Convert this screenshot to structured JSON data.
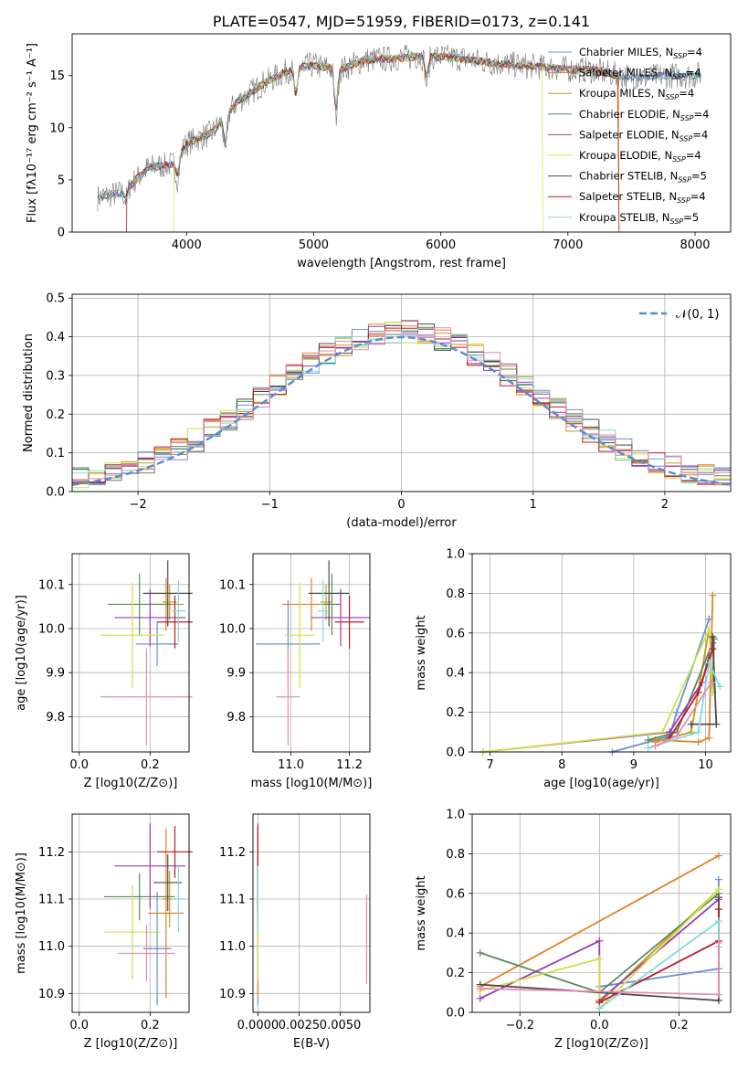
{
  "colors": [
    "#6b8fd6",
    "#e0822b",
    "#c89a1a",
    "#5a8a5a",
    "#9b3bb5",
    "#cfe04a",
    "#4a4a4a",
    "#b81c24",
    "#7fdada",
    "#e88ab0"
  ],
  "chart_data": [
    {
      "id": "spectrum",
      "type": "line",
      "title": "PLATE=0547, MJD=51959, FIBERID=0173, z=0.141",
      "xlabel": "wavelength [Angstrom, rest frame]",
      "ylabel": "Flux [fλ10⁻¹⁷ erg cm⁻² s⁻¹ A⁻¹]",
      "xlim": [
        3100,
        8280
      ],
      "ylim": [
        0,
        19
      ],
      "xticks": [
        4000,
        5000,
        6000,
        7000,
        8000
      ],
      "yticks": [
        0,
        5,
        10,
        15
      ],
      "legend": [
        "Chabrier MILES, N_SSP=4",
        "Salpeter MILES, N_SSP=4",
        "Kroupa MILES, N_SSP=4",
        "Chabrier ELODIE, N_SSP=4",
        "Salpeter ELODIE, N_SSP=4",
        "Kroupa ELODIE, N_SSP=4",
        "Chabrier STELIB, N_SSP=5",
        "Salpeter STELIB, N_SSP=4",
        "Kroupa STELIB, N_SSP=5"
      ],
      "legend_colors": [
        "#6b8fd6",
        "#e0822b",
        "#c89a1a",
        "#5a8a5a",
        "#9b3bb5",
        "#cfe04a",
        "#4a4a4a",
        "#b81c24",
        "#7fdada"
      ],
      "continuum": [
        [
          3300,
          3.3
        ],
        [
          3500,
          3.8
        ],
        [
          3700,
          6.2
        ],
        [
          3900,
          6.5
        ],
        [
          4000,
          8.5
        ],
        [
          4200,
          9.5
        ],
        [
          4400,
          12.5
        ],
        [
          4600,
          14.2
        ],
        [
          4800,
          15.5
        ],
        [
          5000,
          16.0
        ],
        [
          5200,
          15.5
        ],
        [
          5400,
          16.5
        ],
        [
          5600,
          16.6
        ],
        [
          5800,
          16.8
        ],
        [
          6000,
          16.8
        ],
        [
          6200,
          16.6
        ],
        [
          6400,
          16.2
        ],
        [
          6600,
          16.0
        ],
        [
          6800,
          15.8
        ],
        [
          7000,
          15.6
        ],
        [
          7200,
          15.5
        ],
        [
          7400,
          15.0
        ],
        [
          7600,
          14.8
        ],
        [
          7800,
          15.0
        ],
        [
          8000,
          15.0
        ],
        [
          8050,
          15.2
        ]
      ],
      "dips": [
        [
          3525,
          1.0
        ],
        [
          3930,
          2.0
        ],
        [
          4305,
          3.5
        ],
        [
          4860,
          3.0
        ],
        [
          5175,
          4.5
        ],
        [
          5890,
          2.5
        ]
      ]
    },
    {
      "id": "residuals",
      "type": "histogram",
      "xlabel": "(data-model)/error",
      "ylabel": "Normed distribution",
      "xlim": [
        -2.5,
        2.5
      ],
      "ylim": [
        0,
        0.51
      ],
      "xticks": [
        -2,
        -1,
        0,
        1,
        2
      ],
      "yticks": [
        0.0,
        0.1,
        0.2,
        0.3,
        0.4,
        0.5
      ],
      "legend": [
        "𝒩(0, 1)"
      ],
      "grid": true
    },
    {
      "id": "age-Z",
      "type": "scatter",
      "xlabel": "Z [log10(Z/Z⊙)]",
      "ylabel": "age  [log10(age/yr)]",
      "xlim": [
        -0.02,
        0.31
      ],
      "ylim": [
        9.72,
        10.17
      ],
      "xticks": [
        0.0,
        0.2
      ],
      "yticks": [
        9.8,
        9.9,
        10.0,
        10.1
      ],
      "points": [
        [
          0.22,
          9.965,
          0.06,
          0.05
        ],
        [
          0.245,
          10.055,
          0.05,
          0.06
        ],
        [
          0.255,
          10.06,
          0.02,
          0.04
        ],
        [
          0.17,
          10.055,
          0.09,
          0.07
        ],
        [
          0.2,
          10.025,
          0.1,
          0.065
        ],
        [
          0.15,
          9.985,
          0.09,
          0.12
        ],
        [
          0.25,
          10.08,
          0.07,
          0.075
        ],
        [
          0.27,
          10.015,
          0.05,
          0.06
        ],
        [
          0.28,
          10.04,
          0.02,
          0.07
        ],
        [
          0.19,
          9.845,
          0.13,
          0.11
        ]
      ]
    },
    {
      "id": "age-mass",
      "type": "scatter",
      "xlabel": "mass [log10(M/M⊙)]",
      "ylabel": "",
      "xlim": [
        10.87,
        11.27
      ],
      "ylim": [
        9.72,
        10.17
      ],
      "xticks": [
        11.0,
        11.2
      ],
      "yticks": [
        9.8,
        9.9,
        10.0,
        10.1
      ],
      "points": [
        [
          10.99,
          9.965,
          0.11,
          0.1
        ],
        [
          11.07,
          10.055,
          0.1,
          0.06
        ],
        [
          11.12,
          10.06,
          0.02,
          0.04
        ],
        [
          11.14,
          10.055,
          0.03,
          0.07
        ],
        [
          11.17,
          10.025,
          0.1,
          0.065
        ],
        [
          11.03,
          9.985,
          0.05,
          0.12
        ],
        [
          11.13,
          10.08,
          0.07,
          0.075
        ],
        [
          11.2,
          10.015,
          0.05,
          0.06
        ],
        [
          11.11,
          10.04,
          0.02,
          0.07
        ],
        [
          10.99,
          9.845,
          0.04,
          0.11
        ]
      ]
    },
    {
      "id": "weight-age",
      "type": "line",
      "xlabel": "age  [log10(age/yr)]",
      "ylabel": "mass weight",
      "xlim": [
        6.75,
        10.35
      ],
      "ylim": [
        0,
        1
      ],
      "xticks": [
        7,
        8,
        9,
        10
      ],
      "yticks": [
        0.0,
        0.2,
        0.4,
        0.6,
        0.8,
        1.0
      ],
      "series": [
        {
          "points": [
            [
              8.7,
              0
            ],
            [
              9.5,
              0.08
            ],
            [
              9.6,
              0.2
            ],
            [
              10.05,
              0.67
            ]
          ]
        },
        {
          "points": [
            [
              9.3,
              0.06
            ],
            [
              9.9,
              0.05
            ],
            [
              10.05,
              0.07
            ],
            [
              10.1,
              0.79
            ]
          ]
        },
        {
          "points": [
            [
              9.3,
              0.05
            ],
            [
              9.8,
              0.1
            ],
            [
              10.05,
              0.62
            ]
          ]
        },
        {
          "points": [
            [
              9.2,
              0.06
            ],
            [
              9.6,
              0.1
            ],
            [
              10.12,
              0.57
            ],
            [
              10.1,
              0.3
            ]
          ]
        },
        {
          "points": [
            [
              6.9,
              0
            ],
            [
              9.5,
              0.1
            ],
            [
              9.95,
              0.35
            ],
            [
              10.1,
              0.55
            ]
          ]
        },
        {
          "points": [
            [
              6.9,
              0
            ],
            [
              9.4,
              0.1
            ],
            [
              10.05,
              0.62
            ],
            [
              10.1,
              0.3
            ]
          ]
        },
        {
          "points": [
            [
              9.8,
              0.14
            ],
            [
              10.15,
              0.14
            ],
            [
              10.1,
              0.58
            ]
          ]
        },
        {
          "points": [
            [
              9.5,
              0.07
            ],
            [
              9.9,
              0.3
            ],
            [
              10.1,
              0.52
            ]
          ]
        },
        {
          "points": [
            [
              9.2,
              0.02
            ],
            [
              9.9,
              0.1
            ],
            [
              10.05,
              0.45
            ],
            [
              10.2,
              0.33
            ]
          ]
        },
        {
          "points": [
            [
              9.3,
              0.03
            ],
            [
              9.6,
              0.08
            ],
            [
              10.08,
              0.35
            ]
          ]
        }
      ]
    },
    {
      "id": "mass-Z",
      "type": "scatter",
      "xlabel": "Z [log10(Z/Z⊙)]",
      "ylabel": "mass [log10(M/M⊙)]",
      "xlim": [
        -0.02,
        0.31
      ],
      "ylim": [
        10.86,
        11.28
      ],
      "xticks": [
        0.0,
        0.2
      ],
      "yticks": [
        10.9,
        11.0,
        11.1,
        11.2
      ],
      "points": [
        [
          0.22,
          10.995,
          0.04,
          0.12
        ],
        [
          0.245,
          11.07,
          0.05,
          0.18
        ],
        [
          0.255,
          11.1,
          0.02,
          0.06
        ],
        [
          0.17,
          11.105,
          0.1,
          0.05
        ],
        [
          0.2,
          11.17,
          0.1,
          0.09
        ],
        [
          0.15,
          11.03,
          0.08,
          0.1
        ],
        [
          0.25,
          11.135,
          0.04,
          0.06
        ],
        [
          0.27,
          11.2,
          0.05,
          0.055
        ],
        [
          0.28,
          11.1,
          0.02,
          0.07
        ],
        [
          0.19,
          10.985,
          0.08,
          0.06
        ]
      ]
    },
    {
      "id": "mass-ebv",
      "type": "scatter",
      "xlabel": "E(B-V)",
      "ylabel": "",
      "xlim": [
        -0.0003,
        0.0068
      ],
      "ylim": [
        10.86,
        11.28
      ],
      "xticks": [
        0.0,
        0.0025,
        0.005
      ],
      "yticks": [
        10.9,
        11.0,
        11.1,
        11.2
      ],
      "ticklabels_x": [
        "0.0000",
        "0.0025",
        "0.0050"
      ],
      "points": [
        [
          0,
          10.995,
          0,
          0.12
        ],
        [
          0,
          11.07,
          0,
          0.18
        ],
        [
          0,
          11.1,
          0,
          0.06
        ],
        [
          0,
          11.105,
          0,
          0.05
        ],
        [
          0,
          11.17,
          0,
          0.09
        ],
        [
          0,
          11.03,
          0,
          0.1
        ],
        [
          0,
          11.135,
          0,
          0.06
        ],
        [
          0,
          11.2,
          0,
          0.055
        ],
        [
          0,
          11.1,
          0,
          0.07
        ],
        [
          0.0066,
          11.015,
          0,
          0.095
        ]
      ]
    },
    {
      "id": "weight-Z",
      "type": "line",
      "xlabel": "Z [log10(Z/Z⊙)]",
      "ylabel": "mass weight",
      "xlim": [
        -0.32,
        0.33
      ],
      "ylim": [
        0,
        1
      ],
      "xticks": [
        -0.2,
        0.0,
        0.2
      ],
      "yticks": [
        0.0,
        0.2,
        0.4,
        0.6,
        0.8,
        1.0
      ],
      "series": [
        {
          "points": [
            [
              0,
              0.13
            ],
            [
              0.3,
              0.22
            ],
            [
              0.3,
              0.67
            ]
          ]
        },
        {
          "points": [
            [
              -0.3,
              0.13
            ],
            [
              0.3,
              0.79
            ]
          ]
        },
        {
          "points": [
            [
              0,
              0.05
            ],
            [
              0.3,
              0.62
            ]
          ]
        },
        {
          "points": [
            [
              -0.3,
              0.3
            ],
            [
              0,
              0.1
            ],
            [
              0.3,
              0.6
            ]
          ]
        },
        {
          "points": [
            [
              -0.3,
              0.07
            ],
            [
              0,
              0.36
            ],
            [
              0,
              0.06
            ],
            [
              0.3,
              0.57
            ]
          ]
        },
        {
          "points": [
            [
              -0.3,
              0.11
            ],
            [
              0,
              0.27
            ],
            [
              0,
              0.02
            ],
            [
              0.3,
              0.62
            ]
          ]
        },
        {
          "points": [
            [
              -0.3,
              0.14
            ],
            [
              0.3,
              0.06
            ],
            [
              0.3,
              0.58
            ]
          ]
        },
        {
          "points": [
            [
              0,
              0.05
            ],
            [
              0.3,
              0.36
            ],
            [
              0.3,
              0.52
            ]
          ]
        },
        {
          "points": [
            [
              0,
              0.02
            ],
            [
              0.3,
              0.46
            ],
            [
              0.3,
              0.33
            ]
          ]
        },
        {
          "points": [
            [
              -0.3,
              0.12
            ],
            [
              0.3,
              0.09
            ],
            [
              0.3,
              0.35
            ]
          ]
        }
      ]
    }
  ]
}
